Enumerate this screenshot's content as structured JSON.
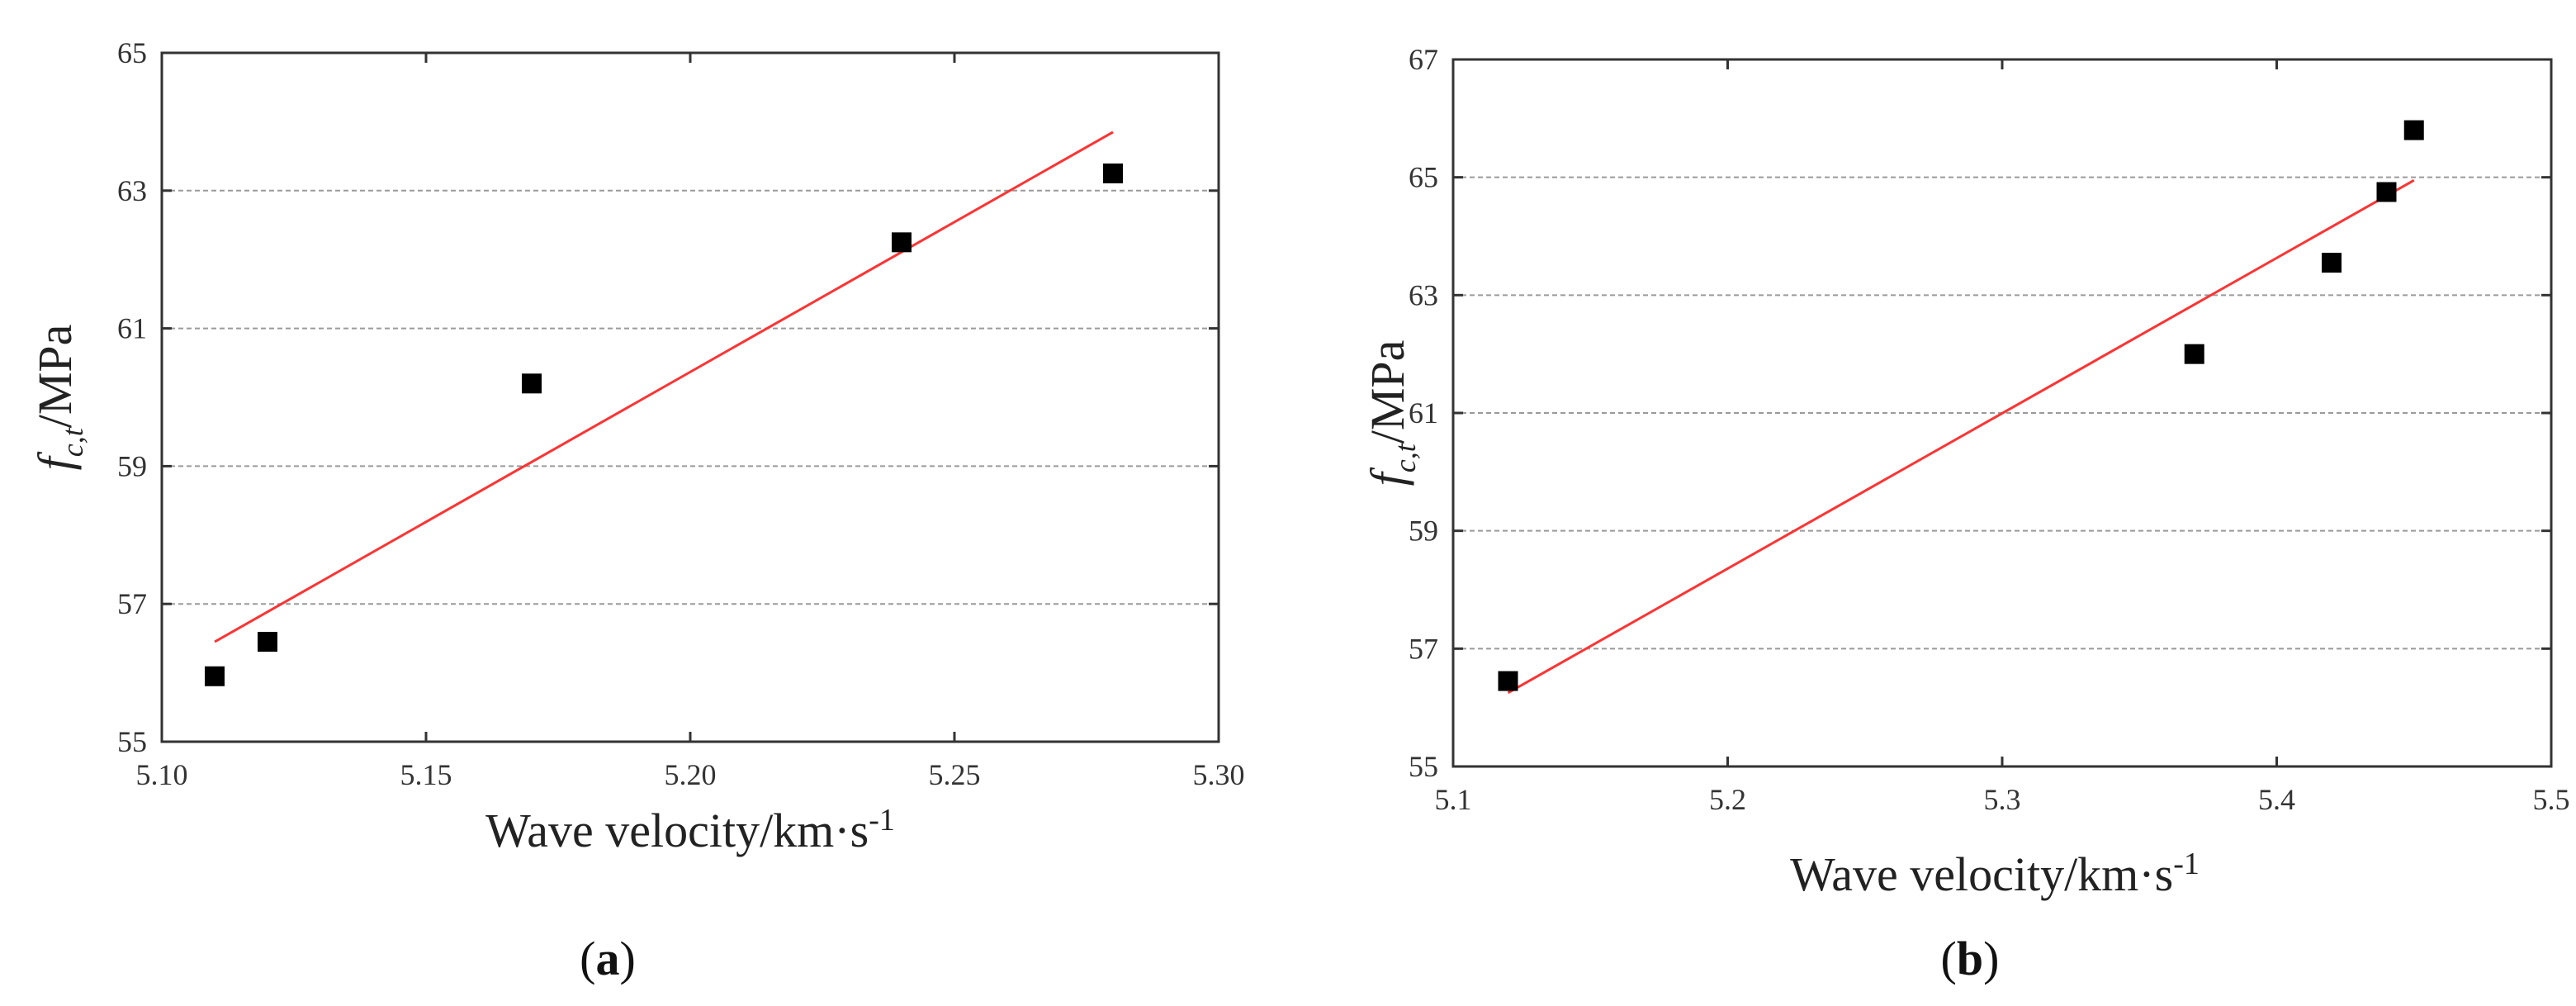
{
  "chart_data": [
    {
      "panel_label": "a",
      "type": "scatter",
      "xlabel": "Wave velocity/km·s",
      "xlabel_sup": "-1",
      "ylabel": "MPa",
      "ylabel_prefix": "f",
      "ylabel_sub": "c,t",
      "xlim": [
        5.1,
        5.3
      ],
      "ylim": [
        55,
        65
      ],
      "xticks": [
        5.1,
        5.15,
        5.2,
        5.25,
        5.3
      ],
      "xtick_labels": [
        "5.10",
        "5.15",
        "5.20",
        "5.25",
        "5.30"
      ],
      "yticks": [
        55,
        57,
        59,
        61,
        63,
        65
      ],
      "ytick_labels": [
        "55",
        "57",
        "59",
        "61",
        "63",
        "65"
      ],
      "grid": "horizontal-dashed",
      "points": [
        {
          "x": 5.11,
          "y": 55.95
        },
        {
          "x": 5.12,
          "y": 56.45
        },
        {
          "x": 5.17,
          "y": 60.2
        },
        {
          "x": 5.24,
          "y": 62.25
        },
        {
          "x": 5.28,
          "y": 63.25
        }
      ],
      "fit_line": {
        "x": [
          5.11,
          5.28
        ],
        "y": [
          56.45,
          63.85
        ],
        "color": "#ff3333"
      },
      "point_color": "#000000"
    },
    {
      "panel_label": "b",
      "type": "scatter",
      "xlabel": "Wave velocity/km·s",
      "xlabel_sup": "-1",
      "ylabel": "MPa",
      "ylabel_prefix": "f",
      "ylabel_sub": "c,t",
      "xlim": [
        5.1,
        5.5
      ],
      "ylim": [
        55,
        67
      ],
      "xticks": [
        5.1,
        5.2,
        5.3,
        5.4,
        5.5
      ],
      "xtick_labels": [
        "5.1",
        "5.2",
        "5.3",
        "5.4",
        "5.5"
      ],
      "yticks": [
        55,
        57,
        59,
        61,
        63,
        65,
        67
      ],
      "ytick_labels": [
        "55",
        "57",
        "59",
        "61",
        "63",
        "65",
        "67"
      ],
      "grid": "horizontal-dashed",
      "points": [
        {
          "x": 5.12,
          "y": 56.45
        },
        {
          "x": 5.37,
          "y": 62.0
        },
        {
          "x": 5.42,
          "y": 63.55
        },
        {
          "x": 5.44,
          "y": 64.75
        },
        {
          "x": 5.45,
          "y": 65.8
        }
      ],
      "fit_line": {
        "x": [
          5.12,
          5.45
        ],
        "y": [
          56.25,
          64.95
        ],
        "color": "#ff3333"
      },
      "point_color": "#000000"
    }
  ]
}
